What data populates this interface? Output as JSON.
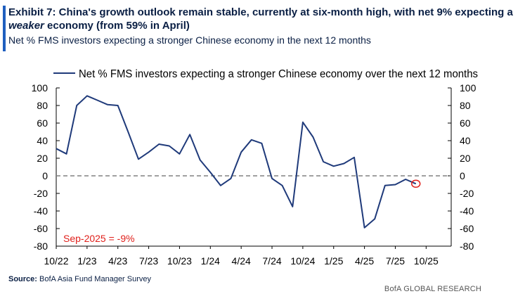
{
  "header": {
    "title_prefix": "Exhibit 7: China's growth outlook remain stable, currently at six-month high, with net 9% expecting a ",
    "title_emphasis": "weaker",
    "title_suffix": " economy (from 59% in April)",
    "subtitle": "Net % FMS investors expecting a stronger Chinese economy in the next 12 months"
  },
  "footer": {
    "source_label": "Source:",
    "source_text": "BofA Asia Fund Manager Survey",
    "brand": "BofA GLOBAL RESEARCH"
  },
  "colors": {
    "series": "#1f3a7a",
    "zero_line": "#808080",
    "marker": "#e0201b",
    "annotation": "#e0201b",
    "axis": "#000000"
  },
  "chart_data": {
    "type": "line",
    "title": "",
    "xlabel": "",
    "ylabel": "",
    "ylim": [
      -80,
      100
    ],
    "yticks": [
      100,
      80,
      60,
      40,
      20,
      0,
      -20,
      -40,
      -60,
      -80
    ],
    "secondary_axis": true,
    "grid": false,
    "legend_position": "top",
    "xtick_labels": [
      "10/22",
      "1/23",
      "4/23",
      "7/23",
      "10/23",
      "1/24",
      "4/24",
      "7/24",
      "10/24",
      "1/25",
      "4/25",
      "7/25",
      "10/25"
    ],
    "series": [
      {
        "name": "Net % FMS investors expecting a stronger Chinese economy over the next 12 months",
        "x": [
          "10/22",
          "11/22",
          "12/22",
          "1/23",
          "2/23",
          "3/23",
          "4/23",
          "5/23",
          "6/23",
          "7/23",
          "8/23",
          "9/23",
          "10/23",
          "11/23",
          "12/23",
          "1/24",
          "2/24",
          "3/24",
          "4/24",
          "5/24",
          "6/24",
          "7/24",
          "8/24",
          "9/24",
          "10/24",
          "11/24",
          "12/24",
          "1/25",
          "2/25",
          "3/25",
          "4/25",
          "5/25",
          "6/25",
          "7/25",
          "8/25",
          "9/25"
        ],
        "values": [
          31,
          25,
          80,
          91,
          86,
          81,
          80,
          50,
          19,
          27,
          36,
          34,
          25,
          47,
          18,
          4,
          -11,
          -3,
          27,
          41,
          37,
          -3,
          -11,
          -35,
          61,
          44,
          16,
          11,
          14,
          21,
          -59,
          -49,
          -11,
          -10,
          -4,
          -9
        ]
      }
    ],
    "reference_lines": [
      {
        "y": 0,
        "style": "dashed"
      }
    ],
    "highlight_point": {
      "x": "9/25",
      "y": -9
    },
    "annotations": [
      {
        "text": "Sep-2025 = -9%"
      }
    ]
  }
}
